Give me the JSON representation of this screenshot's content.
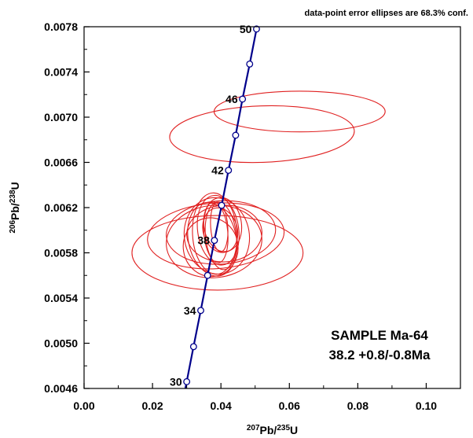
{
  "chart_data": {
    "type": "concordia",
    "xlabel": {
      "base": "Pb/",
      "sup1": "207",
      "sup2": "235",
      "tail": "U"
    },
    "ylabel": {
      "base": "Pb/",
      "sup1": "206",
      "sup2": "238",
      "tail": "U"
    },
    "xlim": [
      0,
      0.11
    ],
    "ylim": [
      0.0046,
      0.0078
    ],
    "x_ticks": [
      "0.00",
      "0.02",
      "0.04",
      "0.06",
      "0.08",
      "0.10"
    ],
    "x_tick_values": [
      0,
      0.02,
      0.04,
      0.06,
      0.08,
      0.1
    ],
    "y_ticks": [
      "0.0046",
      "0.0050",
      "0.0054",
      "0.0058",
      "0.0062",
      "0.0066",
      "0.0070",
      "0.0074",
      "0.0078"
    ],
    "y_tick_values": [
      0.0046,
      0.005,
      0.0054,
      0.0058,
      0.0062,
      0.0066,
      0.007,
      0.0074,
      0.0078
    ],
    "note": "data-point error ellipses are 68.3% conf.",
    "annotation_line1": "SAMPLE Ma-64",
    "annotation_line2": "38.2 +0.8/-0.8Ma",
    "concordia_curve": {
      "color": "#00008b",
      "points": [
        {
          "age": 30,
          "x": 0.03,
          "y": 0.00466,
          "label": "30"
        },
        {
          "age": 32,
          "x": 0.032,
          "y": 0.00497,
          "label": ""
        },
        {
          "age": 34,
          "x": 0.0341,
          "y": 0.00529,
          "label": "34"
        },
        {
          "age": 36,
          "x": 0.0361,
          "y": 0.0056,
          "label": ""
        },
        {
          "age": 38,
          "x": 0.0381,
          "y": 0.00591,
          "label": "38"
        },
        {
          "age": 40,
          "x": 0.0402,
          "y": 0.00622,
          "label": ""
        },
        {
          "age": 42,
          "x": 0.0422,
          "y": 0.00653,
          "label": "42"
        },
        {
          "age": 44,
          "x": 0.0443,
          "y": 0.00684,
          "label": ""
        },
        {
          "age": 46,
          "x": 0.0463,
          "y": 0.00716,
          "label": "46"
        },
        {
          "age": 48,
          "x": 0.0484,
          "y": 0.00747,
          "label": ""
        },
        {
          "age": 50,
          "x": 0.0504,
          "y": 0.00778,
          "label": "50"
        }
      ]
    },
    "ellipses": {
      "color": "#e02020",
      "items": [
        {
          "cx": 0.052,
          "cy": 0.00685,
          "rx": 0.027,
          "ry": 0.00025,
          "angle_deg": 2
        },
        {
          "cx": 0.063,
          "cy": 0.00705,
          "rx": 0.025,
          "ry": 0.00018,
          "angle_deg": 0
        },
        {
          "cx": 0.039,
          "cy": 0.0058,
          "rx": 0.025,
          "ry": 0.00033,
          "angle_deg": 0
        },
        {
          "cx": 0.0385,
          "cy": 0.00595,
          "rx": 0.02,
          "ry": 0.00029,
          "angle_deg": 4
        },
        {
          "cx": 0.038,
          "cy": 0.0059,
          "rx": 0.014,
          "ry": 0.00032,
          "angle_deg": 6
        },
        {
          "cx": 0.04,
          "cy": 0.00598,
          "rx": 0.016,
          "ry": 0.00028,
          "angle_deg": 4
        },
        {
          "cx": 0.0388,
          "cy": 0.00595,
          "rx": 0.0095,
          "ry": 0.00034,
          "angle_deg": 10
        },
        {
          "cx": 0.0375,
          "cy": 0.00592,
          "rx": 0.007,
          "ry": 0.00033,
          "angle_deg": 12
        },
        {
          "cx": 0.0392,
          "cy": 0.006,
          "rx": 0.006,
          "ry": 0.00031,
          "angle_deg": 8
        },
        {
          "cx": 0.04,
          "cy": 0.00595,
          "rx": 0.0045,
          "ry": 0.0003,
          "angle_deg": 6
        },
        {
          "cx": 0.0385,
          "cy": 0.00598,
          "rx": 0.0035,
          "ry": 0.00027,
          "angle_deg": 5
        },
        {
          "cx": 0.0405,
          "cy": 0.00605,
          "rx": 0.0055,
          "ry": 0.00024,
          "angle_deg": 8
        },
        {
          "cx": 0.037,
          "cy": 0.00585,
          "rx": 0.008,
          "ry": 0.00026,
          "angle_deg": 9
        },
        {
          "cx": 0.041,
          "cy": 0.00597,
          "rx": 0.011,
          "ry": 0.00025,
          "angle_deg": 3
        },
        {
          "cx": 0.0395,
          "cy": 0.00603,
          "rx": 0.0025,
          "ry": 0.00022,
          "angle_deg": 4
        },
        {
          "cx": 0.0398,
          "cy": 0.006,
          "rx": 0.005,
          "ry": 0.0002,
          "angle_deg": 15
        },
        {
          "cx": 0.0382,
          "cy": 0.00597,
          "rx": 0.0065,
          "ry": 0.00036,
          "angle_deg": 3
        }
      ]
    }
  }
}
